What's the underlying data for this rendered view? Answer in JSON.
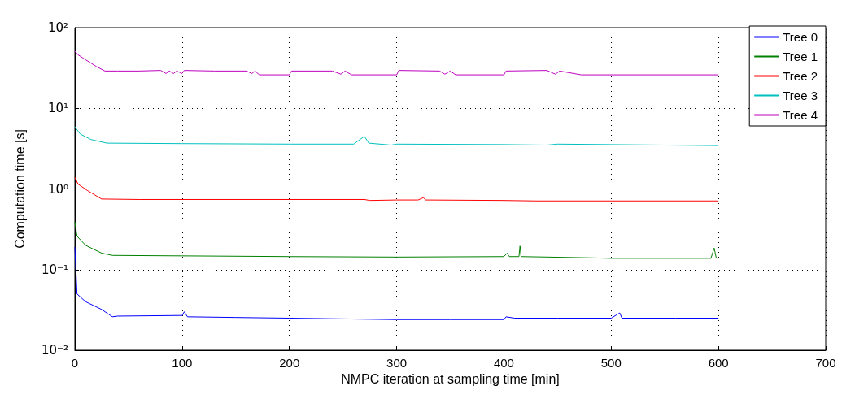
{
  "chart_data": {
    "type": "line",
    "xlabel": "NMPC iteration at sampling time [min]",
    "ylabel": "Computation time [s]",
    "log": "y",
    "grid": true,
    "legend": "top right",
    "line_style": "solid",
    "marker": "none",
    "xlim": [
      0,
      700
    ],
    "xticks": [
      0,
      100,
      200,
      300,
      400,
      500,
      600,
      700
    ],
    "ylim": [
      0.01,
      100
    ],
    "yticks": [
      {
        "value": 0.01,
        "label": "10⁻²"
      },
      {
        "value": 0.1,
        "label": "10⁻¹"
      },
      {
        "value": 1,
        "label": "10⁰"
      },
      {
        "value": 10,
        "label": "10¹"
      },
      {
        "value": 100,
        "label": "10²"
      }
    ],
    "series": [
      {
        "name": "Tree 0",
        "color": "#0000ff",
        "x": [
          0,
          2,
          10,
          25,
          35,
          40,
          100,
          102,
          105,
          150,
          200,
          250,
          300,
          350,
          400,
          402,
          410,
          450,
          500,
          508,
          510,
          560,
          600
        ],
        "values": [
          0.19,
          0.05,
          0.04,
          0.032,
          0.026,
          0.0265,
          0.027,
          0.03,
          0.026,
          0.0255,
          0.025,
          0.0245,
          0.024,
          0.024,
          0.024,
          0.026,
          0.025,
          0.025,
          0.025,
          0.029,
          0.025,
          0.025,
          0.025
        ]
      },
      {
        "name": "Tree 1",
        "color": "#008000",
        "x": [
          0,
          2,
          10,
          25,
          35,
          100,
          200,
          300,
          400,
          403,
          405,
          414,
          415,
          416,
          480,
          500,
          593,
          596,
          598,
          600
        ],
        "values": [
          0.39,
          0.26,
          0.2,
          0.16,
          0.15,
          0.148,
          0.145,
          0.143,
          0.145,
          0.16,
          0.145,
          0.145,
          0.196,
          0.145,
          0.14,
          0.138,
          0.138,
          0.185,
          0.139,
          0.139
        ]
      },
      {
        "name": "Tree 2",
        "color": "#ff0000",
        "x": [
          0,
          3,
          12,
          25,
          60,
          270,
          275,
          300,
          320,
          325,
          327,
          400,
          430,
          600
        ],
        "values": [
          1.39,
          1.15,
          0.95,
          0.75,
          0.74,
          0.74,
          0.72,
          0.73,
          0.73,
          0.78,
          0.73,
          0.72,
          0.71,
          0.71
        ]
      },
      {
        "name": "Tree 3",
        "color": "#00bfbf",
        "x": [
          0,
          5,
          15,
          30,
          100,
          200,
          260,
          270,
          274,
          295,
          300,
          400,
          440,
          450,
          500,
          600
        ],
        "values": [
          5.9,
          4.8,
          4.1,
          3.7,
          3.65,
          3.6,
          3.6,
          4.5,
          3.7,
          3.5,
          3.6,
          3.55,
          3.5,
          3.6,
          3.55,
          3.45
        ]
      },
      {
        "name": "Tree 4",
        "color": "#bf00bf",
        "x": [
          0,
          3,
          10,
          20,
          28,
          40,
          60,
          80,
          85,
          88,
          92,
          95,
          100,
          102,
          130,
          160,
          165,
          168,
          172,
          200,
          202,
          240,
          248,
          252,
          258,
          300,
          302,
          340,
          345,
          350,
          355,
          400,
          402,
          440,
          448,
          452,
          472,
          480,
          600
        ],
        "values": [
          51,
          46,
          40,
          33,
          29,
          29,
          29,
          29.5,
          27,
          29,
          27,
          29,
          27,
          29.5,
          29,
          29,
          27,
          29,
          26,
          26,
          29,
          29,
          26.5,
          29,
          26,
          26,
          29.5,
          29,
          26.5,
          29,
          26,
          26,
          29,
          29.5,
          26.5,
          29,
          26,
          26,
          26
        ]
      }
    ]
  }
}
